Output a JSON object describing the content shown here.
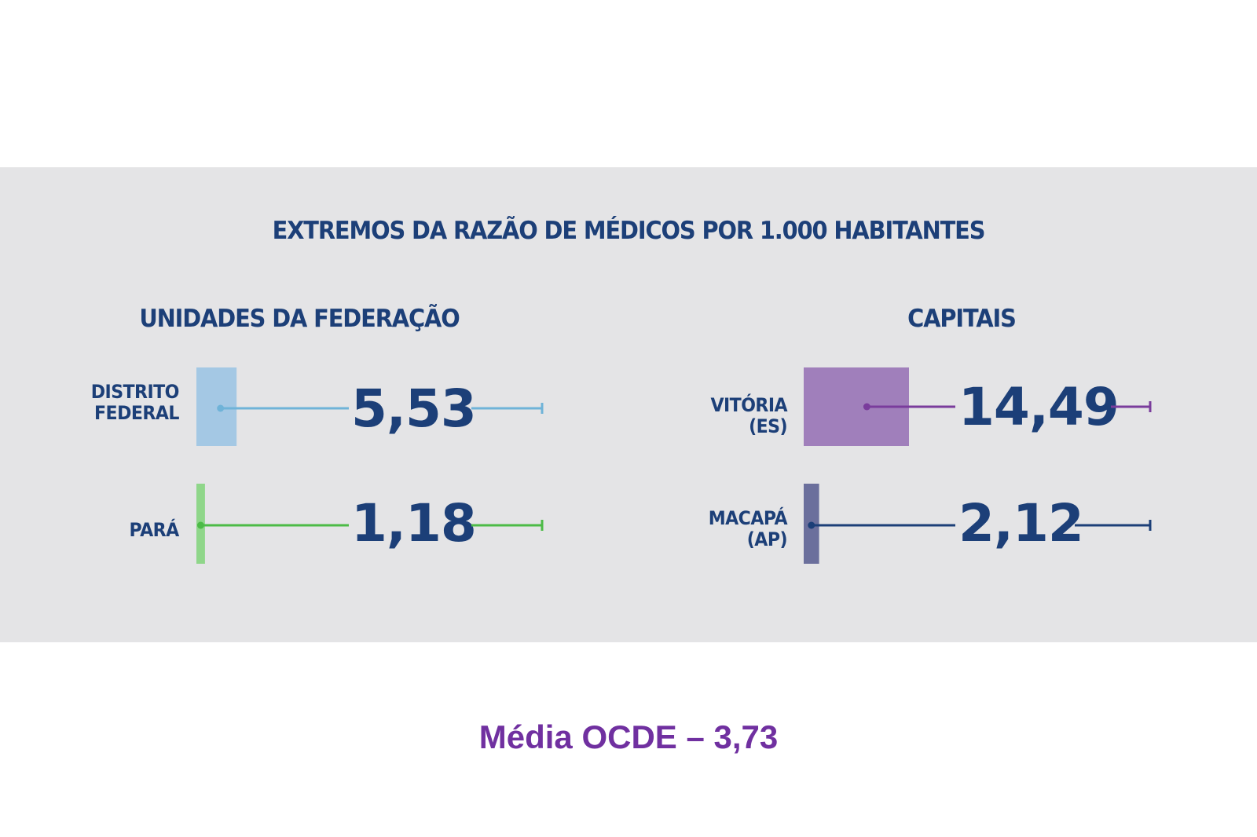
{
  "chart_data": {
    "type": "bar",
    "title": "EXTREMOS DA RAZÃO DE MÉDICOS POR 1.000 HABITANTES",
    "unit": "médicos por 1.000 habitantes",
    "groups": [
      {
        "name": "UNIDADES DA FEDERAÇÃO",
        "items": [
          {
            "label": "DISTRITO\nFEDERAL",
            "value": 5.53,
            "display": "5,53",
            "color": "#a4c8e4",
            "line_color": "#6fb3d8"
          },
          {
            "label": "PARÁ",
            "value": 1.18,
            "display": "1,18",
            "color": "#8fd68a",
            "line_color": "#4cbb47"
          }
        ]
      },
      {
        "name": "CAPITAIS",
        "items": [
          {
            "label": "VITÓRIA\n(ES)",
            "value": 14.49,
            "display": "14,49",
            "color": "#a07fbb",
            "line_color": "#7a3c9c"
          },
          {
            "label": "MACAPÁ\n(AP)",
            "value": 2.12,
            "display": "2,12",
            "color": "#6b6f9c",
            "line_color": "#1c3f78"
          }
        ]
      }
    ],
    "reference": {
      "label": "Média OCDE – 3,73",
      "value": 3.73
    }
  },
  "colors": {
    "panel_bg": "#e4e4e6",
    "text_navy": "#1c3f78",
    "footer_purple": "#7030a0"
  }
}
